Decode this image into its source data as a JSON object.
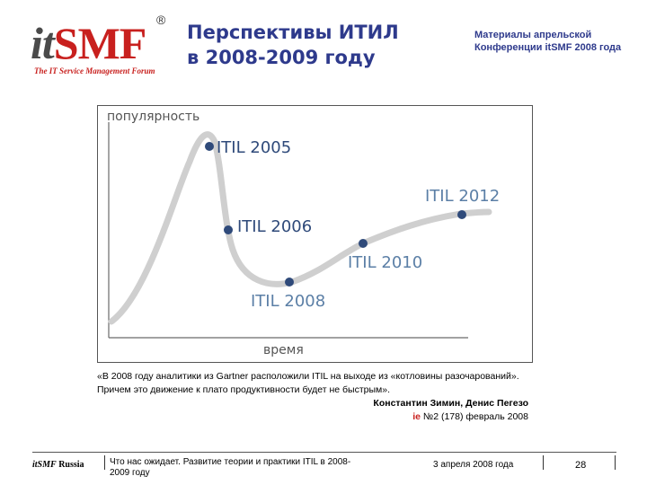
{
  "logo": {
    "text_it": "it",
    "text_smf": "SMF",
    "registered": "®",
    "tagline": "The IT Service Management Forum"
  },
  "header": {
    "title_line1": "Перспективы ИТИЛ",
    "title_line2": "в 2008-2009 году",
    "conf_line1": "Материалы апрельской",
    "conf_line2": "Конференции itSMF 2008 года"
  },
  "diagram": {
    "y_axis_label": "популярность",
    "x_axis_label": "время",
    "points": [
      {
        "label": "ITIL 2005"
      },
      {
        "label": "ITIL 2006"
      },
      {
        "label": "ITIL 2008"
      },
      {
        "label": "ITIL 2010"
      },
      {
        "label": "ITIL 2012"
      }
    ],
    "colors": {
      "curve": "#cfcfcf",
      "dot": "#2f4a7a",
      "label": "#2f4a7a",
      "label_light": "#5b7fa6",
      "axis": "#6a6a6a"
    }
  },
  "quote": {
    "text": "«В 2008 году аналитики из Gartner расположили ITIL на выходе из «котловины разочарований». Причем это движение к плато продуктивности будет не быстрым».",
    "author": "Константин Зимин, Денис Пегезо",
    "source_prefix": "ie",
    "source_rest": " №2 (178) февраль 2008"
  },
  "footer": {
    "brand_it": "itSMF",
    "brand_rest": " Russia",
    "subtitle": "Что нас ожидает. Развитие теории и практики ITIL в 2008-2009 году",
    "date": "3 апреля 2008 года",
    "page": "28"
  }
}
